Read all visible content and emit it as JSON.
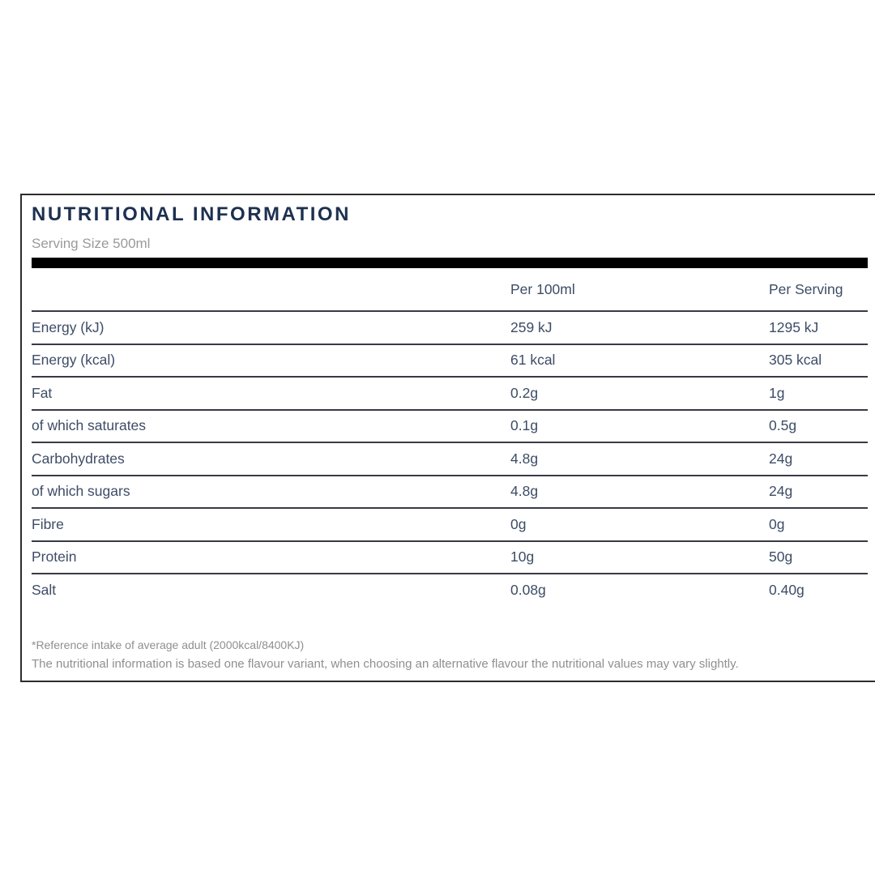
{
  "panel": {
    "title": "NUTRITIONAL INFORMATION",
    "serving_size": "Serving Size 500ml",
    "footnote_reference": "*Reference intake of average adult (2000kcal/8400KJ)",
    "footnote_variant": "The nutritional information is based one flavour variant, when choosing an alternative flavour the nutritional values may vary slightly."
  },
  "table": {
    "columns": [
      "",
      "Per 100ml",
      "Per Serving"
    ],
    "rows": [
      {
        "label": "Energy (kJ)",
        "per_100ml": "259 kJ",
        "per_serving": "1295 kJ"
      },
      {
        "label": "Energy (kcal)",
        "per_100ml": "61 kcal",
        "per_serving": "305 kcal"
      },
      {
        "label": "Fat",
        "per_100ml": "0.2g",
        "per_serving": "1g"
      },
      {
        "label": "of which saturates",
        "per_100ml": "0.1g",
        "per_serving": "0.5g"
      },
      {
        "label": "Carbohydrates",
        "per_100ml": "4.8g",
        "per_serving": "24g"
      },
      {
        "label": "of which sugars",
        "per_100ml": "4.8g",
        "per_serving": "24g"
      },
      {
        "label": "Fibre",
        "per_100ml": "0g",
        "per_serving": "0g"
      },
      {
        "label": "Protein",
        "per_100ml": "10g",
        "per_serving": "50g"
      },
      {
        "label": "Salt",
        "per_100ml": "0.08g",
        "per_serving": "0.40g"
      }
    ]
  },
  "colors": {
    "title_navy": "#1d3050",
    "row_text_navy": "#3d4c66",
    "muted_gray": "#8f8f8f",
    "border_dark": "#2d2d2d",
    "divider_black": "#000000"
  }
}
